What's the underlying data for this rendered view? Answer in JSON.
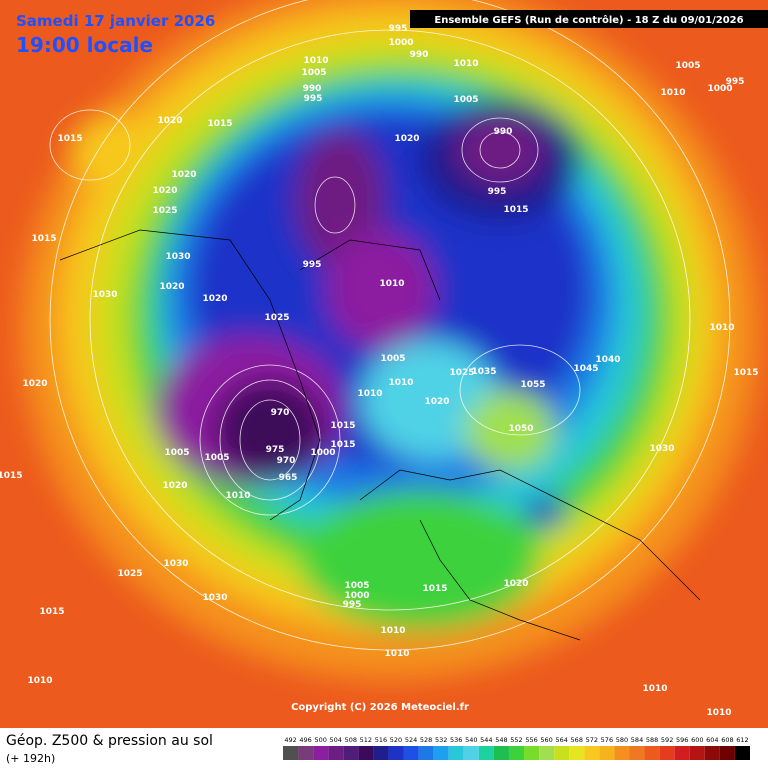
{
  "header": {
    "date": "Samedi 17 janvier 2026",
    "time": "19:00 locale",
    "run": "Ensemble GEFS  (Run de contrôle)  -  18 Z du 09/01/2026"
  },
  "footer": {
    "title": "Géop. Z500 & pression au sol",
    "lead": "(+ 192h)",
    "copyright": "Copyright (C) 2026 Meteociel.fr"
  },
  "scale": {
    "labels": [
      492,
      496,
      500,
      504,
      508,
      512,
      516,
      520,
      524,
      528,
      532,
      536,
      540,
      544,
      548,
      552,
      556,
      560,
      564,
      568,
      572,
      576,
      580,
      584,
      588,
      592,
      596,
      600,
      604,
      608,
      612
    ]
  },
  "pressure_labels": [
    "1015",
    "1020",
    "1015",
    "1020",
    "1020",
    "1025",
    "1015",
    "1030",
    "1020",
    "1030",
    "1020",
    "1025",
    "1020",
    "1005",
    "1005",
    "1020",
    "1010",
    "1015",
    "970",
    "975",
    "970",
    "965",
    "1000",
    "1015",
    "1015",
    "1010",
    "1010",
    "1005",
    "1020",
    "1010",
    "995",
    "1010",
    "1005",
    "990",
    "995",
    "1000",
    "995",
    "990",
    "1010",
    "1005",
    "1020",
    "1005",
    "995",
    "1000",
    "1010",
    "990",
    "995",
    "1015",
    "1040",
    "1045",
    "1055",
    "1050",
    "1030",
    "1010",
    "1015",
    "1025",
    "1030",
    "1030",
    "1015",
    "1010",
    "1005",
    "1000",
    "995",
    "1015",
    "1020",
    "1010",
    "1010",
    "1010",
    "1010",
    "1035",
    "1025"
  ]
}
